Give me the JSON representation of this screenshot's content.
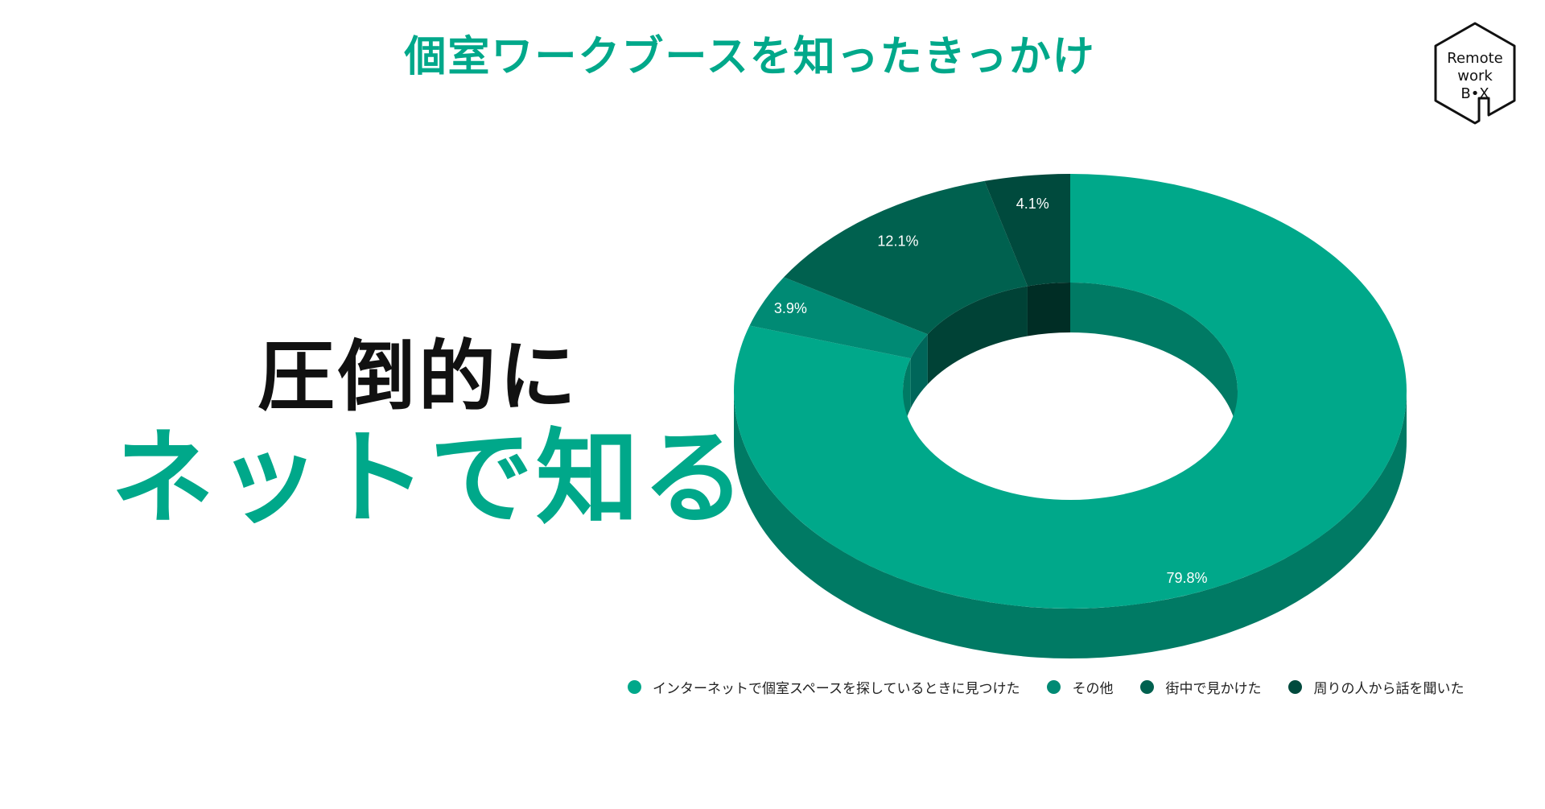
{
  "page": {
    "title": "個室ワークブースを知ったきっかけ",
    "headline_line1": "圧倒的に",
    "headline_line2": "ネットで知る",
    "accent_color": "#00a88a"
  },
  "logo": {
    "line1": "Remote",
    "line2": "work",
    "line3": "B•X",
    "icon": "house-hexagon-logo-icon"
  },
  "chart_data": {
    "type": "pie",
    "style": "3d-donut",
    "title": "個室ワークブースを知ったきっかけ",
    "legend_position": "bottom",
    "series": [
      {
        "name": "インターネットで個室スペースを探しているときに見つけた",
        "value": 79.8,
        "label": "79.8%",
        "color": "#00a88a",
        "side_color": "#007a64"
      },
      {
        "name": "その他",
        "value": 3.9,
        "label": "3.9%",
        "color": "#008a74",
        "side_color": "#00665a"
      },
      {
        "name": "街中で見かけた",
        "value": 12.1,
        "label": "12.1%",
        "color": "#00614f",
        "side_color": "#004236"
      },
      {
        "name": "周りの人から話を聞いた",
        "value": 4.1,
        "label": "4.1%",
        "color": "#004a3d",
        "side_color": "#002d25"
      }
    ]
  }
}
